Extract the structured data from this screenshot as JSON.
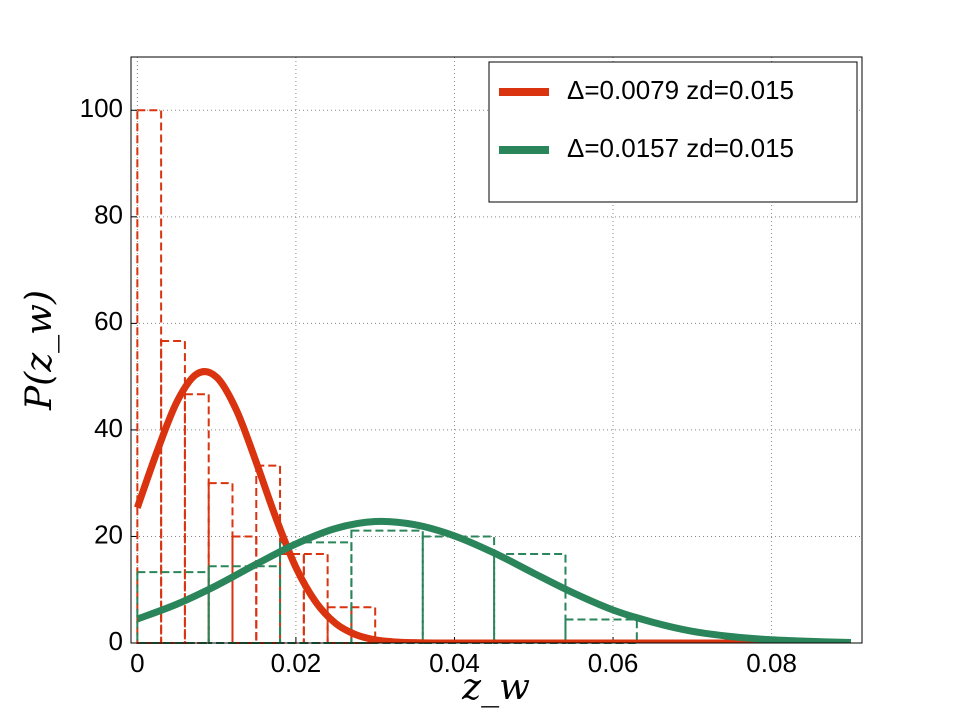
{
  "chart_data": {
    "type": "histogram",
    "xlabel": "z_w",
    "ylabel": "P(z_w)",
    "xlim": [
      -0.0008,
      0.0914
    ],
    "ylim": [
      0,
      110
    ],
    "xticks": [
      0,
      0.02,
      0.04,
      0.06,
      0.08
    ],
    "yticks": [
      0,
      20,
      40,
      60,
      80,
      100
    ],
    "grid": true,
    "legend": "upper right",
    "histograms": [
      {
        "color": "#d9330f",
        "bins": [
          0,
          0.003,
          0.006,
          0.009,
          0.012,
          0.015,
          0.018,
          0.021,
          0.024,
          0.027,
          0.03
        ],
        "counts": [
          100,
          56.7,
          46.7,
          30,
          20,
          33.3,
          16.7,
          16.7,
          6.7,
          6.7
        ]
      },
      {
        "color": "#2a855a",
        "bins": [
          0,
          0.009,
          0.018,
          0.027,
          0.036,
          0.045,
          0.054,
          0.063
        ],
        "counts": [
          13.3,
          14.4,
          18.9,
          21.1,
          20,
          16.7,
          4.4
        ]
      }
    ],
    "series": [
      {
        "name": "Δ=0.0079 zd=0.015",
        "color": "#d9330f",
        "x": [
          0,
          0.0025,
          0.005,
          0.0075,
          0.01,
          0.0125,
          0.015,
          0.0175,
          0.02,
          0.0225,
          0.025,
          0.0275,
          0.03,
          0.0325,
          0.035,
          0.0375,
          0.04,
          0.09
        ],
        "values": [
          25.4,
          36.0,
          45.3,
          50.5,
          49.9,
          43.7,
          33.9,
          23.4,
          14.2,
          7.7,
          3.7,
          1.6,
          0.6,
          0.2,
          0.06,
          0,
          0,
          0
        ]
      },
      {
        "name": "Δ=0.0157 zd=0.015",
        "color": "#2a855a",
        "x": [
          0,
          0.005,
          0.01,
          0.015,
          0.02,
          0.025,
          0.03,
          0.035,
          0.04,
          0.045,
          0.05,
          0.055,
          0.06,
          0.065,
          0.07,
          0.075,
          0.08,
          0.085,
          0.09
        ],
        "values": [
          4.5,
          7.3,
          10.8,
          14.8,
          18.6,
          21.5,
          22.8,
          22.2,
          20.1,
          16.9,
          13.1,
          9.4,
          6.2,
          3.9,
          2.2,
          1.2,
          0.6,
          0.3,
          0.1
        ]
      }
    ]
  }
}
